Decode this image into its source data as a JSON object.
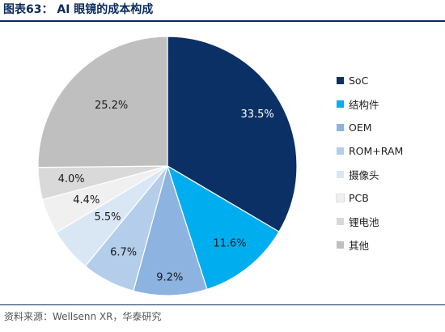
{
  "header": {
    "title": "图表63：  AI 眼镜的成本构成"
  },
  "footer": {
    "source": "资料来源：Wellsenn XR，华泰研究"
  },
  "chart_data": {
    "type": "pie",
    "categories": [
      "SoC",
      "结构件",
      "OEM",
      "ROM+RAM",
      "摄像头",
      "PCB",
      "锂电池",
      "其他"
    ],
    "values": [
      33.5,
      11.6,
      9.2,
      6.7,
      5.5,
      4.4,
      4.0,
      25.2
    ],
    "labels": [
      "33.5%",
      "11.6%",
      "9.2%",
      "6.7%",
      "5.5%",
      "4.4%",
      "4.0%",
      "25.2%"
    ],
    "colors": [
      "#0a3066",
      "#00aeef",
      "#8db3e0",
      "#b3cdea",
      "#d9e7f5",
      "#f0f0f0",
      "#d9d9d9",
      "#bfbfbf"
    ],
    "label_colors": [
      "#ffffff",
      "#1a1a1a",
      "#1a1a1a",
      "#1a1a1a",
      "#1a1a1a",
      "#1a1a1a",
      "#1a1a1a",
      "#1a1a1a"
    ],
    "start": "12 o'clock",
    "direction": "clockwise",
    "legend": "right"
  }
}
